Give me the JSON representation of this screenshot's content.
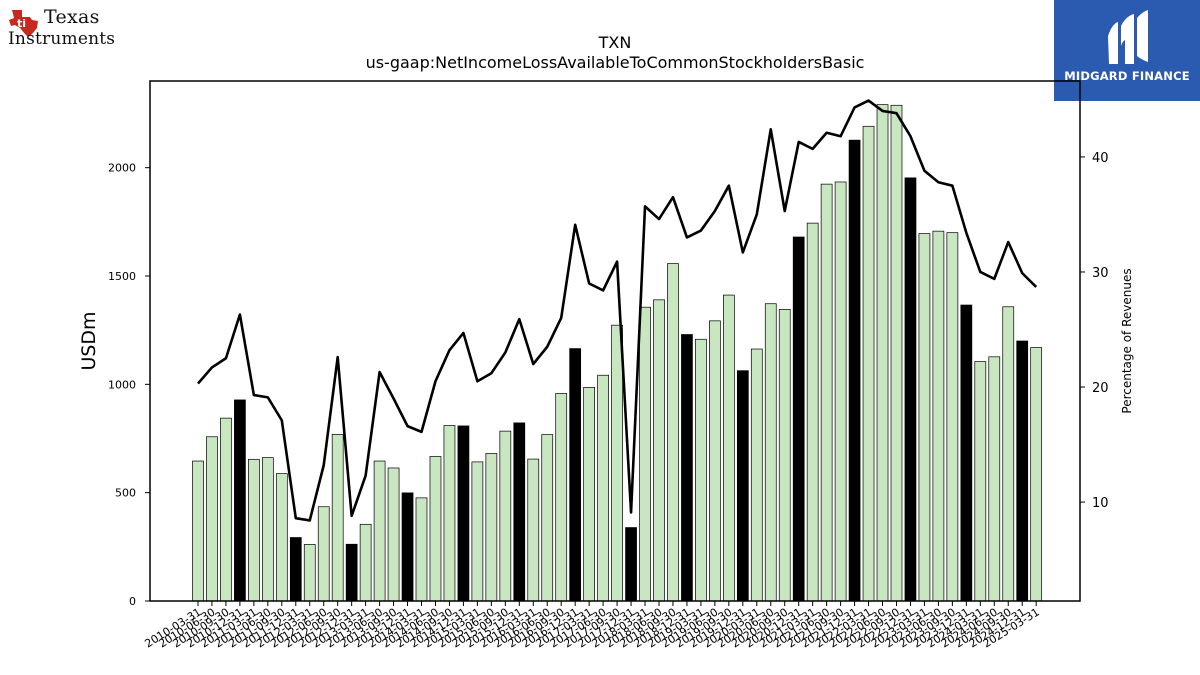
{
  "logos": {
    "left": {
      "line1": "Texas",
      "line2": "Instruments"
    },
    "right": {
      "name": "MIDGARD FINANCE"
    }
  },
  "chart_data": {
    "type": "bar",
    "title": "TXN",
    "subtitle": "us-gaap:NetIncomeLossAvailableToCommonStockholdersBasic",
    "ylabel": "USDm",
    "y2label": "Percentage of Revenues",
    "ylim": [
      0,
      2400
    ],
    "y2lim": [
      1.4,
      46.6
    ],
    "yticks": [
      0,
      500,
      1000,
      1500,
      2000
    ],
    "y2ticks": [
      10,
      20,
      30,
      40
    ],
    "colors": {
      "bar": "#c8e6c0",
      "bar_q4": "#000000",
      "line": "#000000"
    },
    "grid": false,
    "categories": [
      "2010-03-31",
      "2010-06-30",
      "2010-09-30",
      "2010-12-31",
      "2011-03-31",
      "2011-06-30",
      "2011-09-30",
      "2011-12-31",
      "2012-03-31",
      "2012-06-30",
      "2012-09-30",
      "2012-12-31",
      "2013-03-31",
      "2013-06-30",
      "2013-09-30",
      "2013-12-31",
      "2014-03-31",
      "2014-06-30",
      "2014-09-30",
      "2014-12-31",
      "2015-03-31",
      "2015-06-30",
      "2015-09-30",
      "2015-12-31",
      "2016-03-31",
      "2016-06-30",
      "2016-09-30",
      "2016-12-31",
      "2017-03-31",
      "2017-06-30",
      "2017-09-30",
      "2017-12-31",
      "2018-03-31",
      "2018-06-30",
      "2018-09-30",
      "2018-12-31",
      "2019-03-31",
      "2019-06-30",
      "2019-09-30",
      "2019-12-31",
      "2020-03-31",
      "2020-06-30",
      "2020-09-30",
      "2020-12-31",
      "2021-03-31",
      "2021-06-30",
      "2021-09-30",
      "2021-12-31",
      "2022-03-31",
      "2022-06-30",
      "2022-09-30",
      "2022-12-31",
      "2023-03-31",
      "2023-06-30",
      "2023-09-30",
      "2023-12-31",
      "2024-03-31",
      "2024-06-30",
      "2024-09-30",
      "2024-12-31",
      "2025-03-31"
    ],
    "visible_tick_labels": [
      "2010-03-31",
      "2010-06-30",
      "2010-09-30",
      "2010-12-31",
      "2011-03-31",
      "2011-06-30",
      "2011-09-30",
      "2011-12-31",
      "2012-03-31",
      "2012-06-30",
      "2012-09-30",
      "2012-12-31",
      "2013-03-31",
      "2013-06-30",
      "2013-09-30",
      "2013-12-31",
      "2014-03-31",
      "2014-06-30",
      "2014-09-30",
      "2014-12-31",
      "2015-03-31",
      "2015-06-30",
      "2015-09-30",
      "2015-12-31",
      "2016-03-31",
      "2016-06-30",
      "2016-09-30",
      "2016-12-31",
      "2017-03-31",
      "2017-06-30",
      "2017-09-30",
      "2017-12-31",
      "2018-03-31",
      "2018-06-30",
      "2018-09-30",
      "2018-12-31",
      "2019-03-31",
      "2019-06-30",
      "2019-09-30",
      "2019-12-31",
      "2020-03-31",
      "2020-06-30",
      "2020-09-30",
      "2020-12-31",
      "2021-03-31",
      "2021-06-30",
      "2021-09-30",
      "2021-12-31",
      "2022-03-31",
      "2022-06-30",
      "2022-09-30",
      "2022-12-31",
      "2023-03-31",
      "2023-06-30",
      "2023-09-30",
      "2023-12-31",
      "2024-03-31",
      "2024-06-30",
      "2024-09-30",
      "2024-12-31",
      "2025-03-31"
    ],
    "series": [
      {
        "type": "bar",
        "axis": "left",
        "values": [
          646,
          758,
          844,
          928,
          654,
          662,
          588,
          293,
          261,
          435,
          769,
          262,
          354,
          646,
          614,
          499,
          476,
          667,
          810,
          808,
          642,
          681,
          784,
          822,
          655,
          768,
          958,
          1165,
          986,
          1042,
          1273,
          339,
          1356,
          1390,
          1557,
          1230,
          1208,
          1293,
          1412,
          1063,
          1163,
          1372,
          1346,
          1680,
          1744,
          1924,
          1934,
          2127,
          2191,
          2291,
          2288,
          1953,
          1696,
          1707,
          1700,
          1366,
          1105,
          1127,
          1358,
          1200,
          1170
        ],
        "q4_highlight": [
          false,
          false,
          false,
          true,
          false,
          false,
          false,
          true,
          false,
          false,
          false,
          true,
          false,
          false,
          false,
          true,
          false,
          false,
          false,
          true,
          false,
          false,
          false,
          true,
          false,
          false,
          false,
          true,
          false,
          false,
          false,
          true,
          false,
          false,
          false,
          true,
          false,
          false,
          false,
          true,
          false,
          false,
          false,
          true,
          false,
          false,
          false,
          true,
          false,
          false,
          false,
          true,
          false,
          false,
          false,
          true,
          false,
          false,
          false,
          true,
          false
        ]
      },
      {
        "type": "line",
        "axis": "right",
        "values": [
          20.3,
          21.7,
          22.5,
          26.3,
          19.3,
          19.1,
          17.1,
          8.6,
          8.4,
          13.2,
          22.6,
          8.8,
          12.3,
          21.3,
          19.0,
          16.6,
          16.1,
          20.5,
          23.2,
          24.7,
          20.5,
          21.2,
          23.0,
          25.9,
          22.0,
          23.5,
          26.0,
          34.1,
          29.0,
          28.4,
          30.9,
          9.1,
          35.7,
          34.6,
          36.5,
          33.0,
          33.6,
          35.3,
          37.5,
          31.7,
          35.0,
          42.4,
          35.3,
          41.3,
          40.7,
          42.1,
          41.8,
          44.3,
          44.9,
          44.0,
          43.8,
          41.8,
          38.8,
          37.8,
          37.5,
          33.4,
          30.0,
          29.4,
          32.6,
          29.9,
          28.7
        ]
      }
    ]
  }
}
